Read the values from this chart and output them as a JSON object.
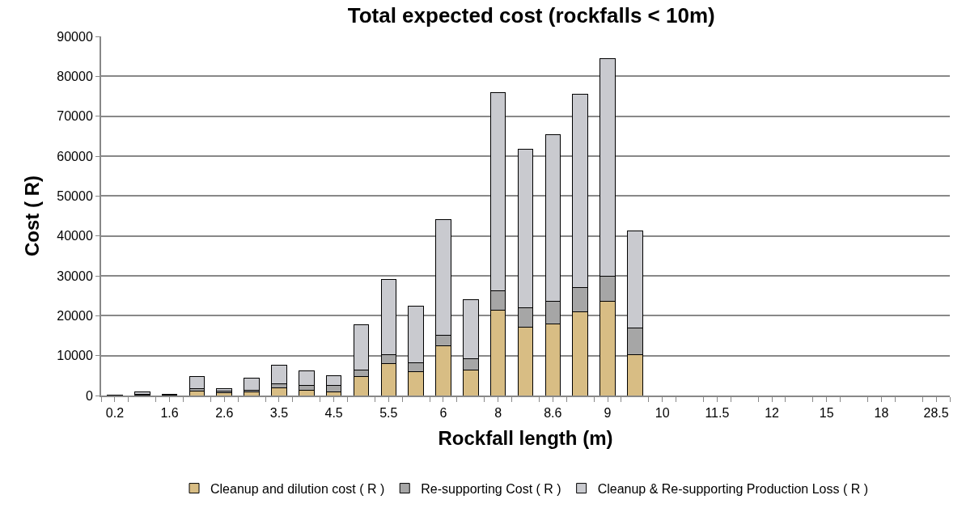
{
  "chart_data": {
    "type": "bar",
    "stacked": true,
    "title": "Total expected cost (rockfalls < 10m)",
    "xlabel": "Rockfall length (m)",
    "ylabel": "Cost ( R)",
    "categories": [
      "0.2",
      null,
      "1.6",
      null,
      "2.6",
      null,
      "3.5",
      null,
      "4.5",
      null,
      "5.5",
      null,
      "6",
      null,
      "8",
      null,
      "8.6",
      null,
      "9",
      null,
      "10",
      null,
      "11.5",
      null,
      "12",
      null,
      "15",
      null,
      "18",
      null,
      "28.5"
    ],
    "series": [
      {
        "name": "Cleanup and dilution cost ( R )",
        "color": "#d8bd84",
        "values": [
          null,
          100,
          100,
          1200,
          800,
          900,
          1900,
          1400,
          900,
          4800,
          8100,
          5900,
          12400,
          6300,
          21400,
          17100,
          18000,
          20900,
          23700,
          10300,
          null,
          null,
          null,
          null,
          null,
          null,
          null,
          null,
          null,
          null,
          null
        ]
      },
      {
        "name": "Re-supporting Cost ( R )",
        "color": "#a6a6a6",
        "values": [
          null,
          300,
          100,
          500,
          400,
          500,
          1000,
          1200,
          1600,
          1600,
          2200,
          2400,
          2700,
          3000,
          4900,
          4900,
          5600,
          6200,
          6100,
          6600,
          null,
          null,
          null,
          null,
          null,
          null,
          null,
          null,
          null,
          null,
          null
        ]
      },
      {
        "name": "Cleanup & Re-supporting Production Loss ( R )",
        "color": "#c9cacf",
        "values": [
          200,
          500,
          200,
          3100,
          600,
          3000,
          4700,
          3500,
          2500,
          11400,
          18800,
          14100,
          28900,
          14800,
          49700,
          39700,
          41700,
          48400,
          54600,
          24300,
          null,
          null,
          null,
          null,
          null,
          null,
          null,
          null,
          null,
          null,
          null
        ]
      }
    ],
    "ylim": [
      0,
      90000
    ],
    "yticks": [
      0,
      10000,
      20000,
      30000,
      40000,
      50000,
      60000,
      70000,
      80000,
      90000
    ],
    "grid": "y",
    "legend": "bottom"
  }
}
